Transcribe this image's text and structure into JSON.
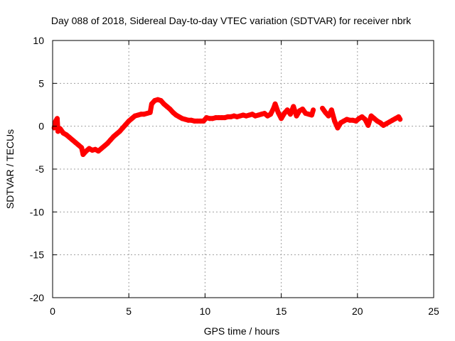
{
  "chart_data": {
    "type": "scatter",
    "title": "Day 088 of 2018, Sidereal Day-to-day VTEC variation (SDTVAR) for receiver nbrk",
    "xlabel": "GPS time / hours",
    "ylabel": "SDTVAR / TECUs",
    "xlim": [
      0,
      25
    ],
    "ylim": [
      -20,
      10
    ],
    "x_ticks": [
      0,
      5,
      10,
      15,
      20,
      25
    ],
    "y_ticks": [
      -20,
      -15,
      -10,
      -5,
      0,
      5,
      10
    ],
    "grid": true,
    "marker": "plus",
    "color": "#ff0000",
    "series": [
      {
        "name": "SDTVAR nbrk",
        "points": [
          [
            0.1,
            -0.2
          ],
          [
            0.2,
            0.6
          ],
          [
            0.3,
            0.9
          ],
          [
            0.35,
            -0.6
          ],
          [
            0.5,
            -0.3
          ],
          [
            0.7,
            -0.8
          ],
          [
            0.9,
            -1.0
          ],
          [
            1.1,
            -1.3
          ],
          [
            1.3,
            -1.6
          ],
          [
            1.5,
            -1.9
          ],
          [
            1.7,
            -2.2
          ],
          [
            1.9,
            -2.5
          ],
          [
            2.0,
            -3.3
          ],
          [
            2.2,
            -2.9
          ],
          [
            2.4,
            -2.6
          ],
          [
            2.6,
            -2.8
          ],
          [
            2.8,
            -2.7
          ],
          [
            3.0,
            -2.9
          ],
          [
            3.2,
            -2.6
          ],
          [
            3.4,
            -2.3
          ],
          [
            3.6,
            -2.0
          ],
          [
            3.8,
            -1.6
          ],
          [
            4.0,
            -1.2
          ],
          [
            4.2,
            -0.9
          ],
          [
            4.4,
            -0.6
          ],
          [
            4.6,
            -0.2
          ],
          [
            4.8,
            0.2
          ],
          [
            5.0,
            0.6
          ],
          [
            5.2,
            0.9
          ],
          [
            5.4,
            1.2
          ],
          [
            5.6,
            1.3
          ],
          [
            5.8,
            1.4
          ],
          [
            6.0,
            1.4
          ],
          [
            6.2,
            1.5
          ],
          [
            6.4,
            1.6
          ],
          [
            6.5,
            2.6
          ],
          [
            6.7,
            3.0
          ],
          [
            6.9,
            3.1
          ],
          [
            7.1,
            3.0
          ],
          [
            7.3,
            2.6
          ],
          [
            7.5,
            2.3
          ],
          [
            7.7,
            2.0
          ],
          [
            7.9,
            1.6
          ],
          [
            8.1,
            1.3
          ],
          [
            8.3,
            1.1
          ],
          [
            8.5,
            0.9
          ],
          [
            8.7,
            0.8
          ],
          [
            8.9,
            0.7
          ],
          [
            9.1,
            0.7
          ],
          [
            9.3,
            0.6
          ],
          [
            9.5,
            0.6
          ],
          [
            9.7,
            0.6
          ],
          [
            9.9,
            0.6
          ],
          [
            10.1,
            1.0
          ],
          [
            10.3,
            0.9
          ],
          [
            10.5,
            0.9
          ],
          [
            10.7,
            1.0
          ],
          [
            10.9,
            1.0
          ],
          [
            11.1,
            1.0
          ],
          [
            11.3,
            1.0
          ],
          [
            11.5,
            1.1
          ],
          [
            11.7,
            1.1
          ],
          [
            11.9,
            1.2
          ],
          [
            12.1,
            1.1
          ],
          [
            12.3,
            1.2
          ],
          [
            12.5,
            1.3
          ],
          [
            12.7,
            1.2
          ],
          [
            12.9,
            1.3
          ],
          [
            13.1,
            1.4
          ],
          [
            13.3,
            1.2
          ],
          [
            13.5,
            1.3
          ],
          [
            13.7,
            1.4
          ],
          [
            13.9,
            1.5
          ],
          [
            14.1,
            1.2
          ],
          [
            14.3,
            1.4
          ],
          [
            14.5,
            2.1
          ],
          [
            14.6,
            2.6
          ],
          [
            14.8,
            1.6
          ],
          [
            15.0,
            0.9
          ],
          [
            15.2,
            1.5
          ],
          [
            15.4,
            1.9
          ],
          [
            15.6,
            1.4
          ],
          [
            15.8,
            2.3
          ],
          [
            16.0,
            1.2
          ],
          [
            16.2,
            1.8
          ],
          [
            16.4,
            2.0
          ],
          [
            16.6,
            1.5
          ],
          [
            16.8,
            1.4
          ],
          [
            17.0,
            1.3
          ],
          [
            17.1,
            1.9
          ],
          [
            17.7,
            2.1
          ],
          [
            17.9,
            1.6
          ],
          [
            18.1,
            1.2
          ],
          [
            18.3,
            1.9
          ],
          [
            18.5,
            0.6
          ],
          [
            18.7,
            -0.2
          ],
          [
            18.9,
            0.4
          ],
          [
            19.1,
            0.6
          ],
          [
            19.3,
            0.8
          ],
          [
            19.5,
            0.7
          ],
          [
            19.7,
            0.7
          ],
          [
            19.9,
            0.6
          ],
          [
            20.1,
            0.9
          ],
          [
            20.3,
            1.1
          ],
          [
            20.5,
            0.8
          ],
          [
            20.7,
            0.1
          ],
          [
            20.9,
            1.2
          ],
          [
            21.1,
            0.9
          ],
          [
            21.3,
            0.6
          ],
          [
            21.5,
            0.4
          ],
          [
            21.7,
            0.1
          ],
          [
            21.9,
            0.3
          ],
          [
            22.1,
            0.5
          ],
          [
            22.3,
            0.7
          ],
          [
            22.5,
            0.9
          ],
          [
            22.7,
            1.1
          ],
          [
            22.8,
            0.8
          ]
        ]
      }
    ]
  }
}
